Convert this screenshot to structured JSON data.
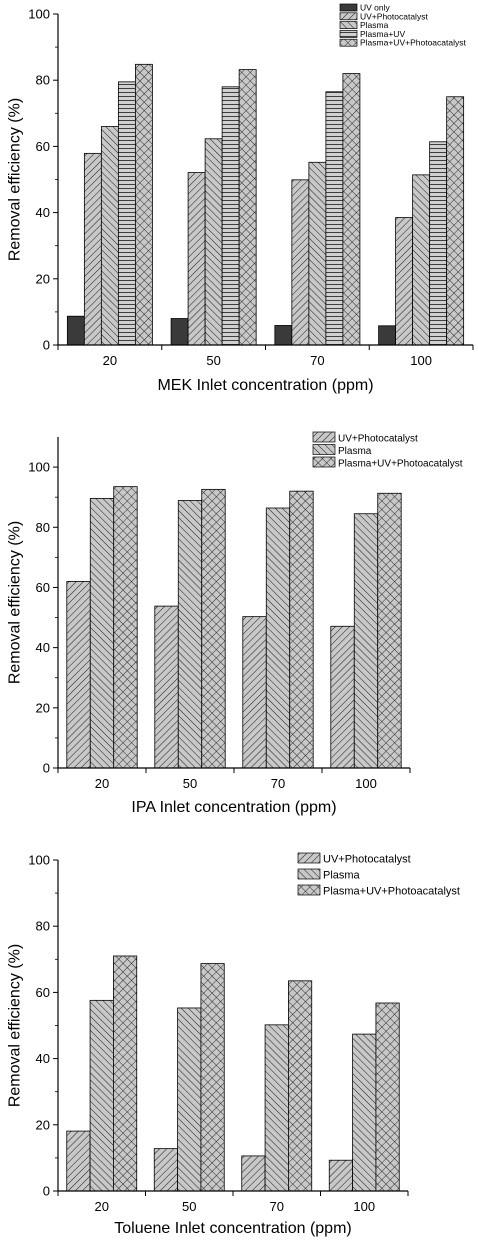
{
  "colors": {
    "bar_fill": "#c8c8c8",
    "uv_only_fill": "#3a3a3a",
    "stroke": "#000000"
  },
  "chart_data": [
    {
      "type": "bar",
      "xlabel": "MEK Inlet concentration (ppm)",
      "ylabel": "Removal efficiency (%)",
      "categories": [
        "20",
        "50",
        "70",
        "100"
      ],
      "ylim": [
        0,
        100
      ],
      "yticks": [
        0,
        20,
        40,
        60,
        80,
        100
      ],
      "grid": false,
      "legend_position": "top-right",
      "series": [
        {
          "name": "UV only",
          "pattern": "solid-dark",
          "values": [
            8.7,
            8.0,
            5.9,
            5.8
          ]
        },
        {
          "name": "UV+Photocatalyst",
          "pattern": "diag-right",
          "values": [
            57.9,
            52.1,
            49.9,
            38.5
          ]
        },
        {
          "name": "Plasma",
          "pattern": "diag-left",
          "values": [
            66.0,
            62.3,
            55.2,
            51.4
          ]
        },
        {
          "name": "Plasma+UV",
          "pattern": "horizontal",
          "values": [
            79.5,
            78.0,
            76.5,
            61.4
          ]
        },
        {
          "name": "Plasma+UV+Photoacatalyst",
          "pattern": "crosshatch",
          "values": [
            84.8,
            83.2,
            82.0,
            75.0
          ]
        }
      ]
    },
    {
      "type": "bar",
      "xlabel": "IPA Inlet concentration (ppm)",
      "ylabel": "Removal efficiency (%)",
      "categories": [
        "20",
        "50",
        "70",
        "100"
      ],
      "ylim": [
        0,
        110
      ],
      "yticks": [
        0,
        20,
        40,
        60,
        80,
        100
      ],
      "grid": false,
      "legend_position": "top-right",
      "series": [
        {
          "name": "UV+Photocatalyst",
          "pattern": "diag-right",
          "values": [
            62.0,
            53.8,
            50.3,
            47.1
          ]
        },
        {
          "name": "Plasma",
          "pattern": "diag-left",
          "values": [
            89.6,
            88.9,
            86.4,
            84.5
          ]
        },
        {
          "name": "Plasma+UV+Photoacatalyst",
          "pattern": "crosshatch",
          "values": [
            93.5,
            92.6,
            92.0,
            91.3
          ]
        }
      ]
    },
    {
      "type": "bar",
      "xlabel": "Toluene Inlet concentration (ppm)",
      "ylabel": "Removal efficiency (%)",
      "categories": [
        "20",
        "50",
        "70",
        "100"
      ],
      "ylim": [
        0,
        100
      ],
      "yticks": [
        0,
        20,
        40,
        60,
        80,
        100
      ],
      "grid": false,
      "legend_position": "top-right",
      "series": [
        {
          "name": "UV+Photocatalyst",
          "pattern": "diag-right",
          "values": [
            18.1,
            12.8,
            10.6,
            9.3
          ]
        },
        {
          "name": "Plasma",
          "pattern": "diag-left",
          "values": [
            57.6,
            55.3,
            50.2,
            47.4
          ]
        },
        {
          "name": "Plasma+UV+Photoacatalyst",
          "pattern": "crosshatch",
          "values": [
            71.0,
            68.7,
            63.5,
            56.8
          ]
        }
      ]
    }
  ]
}
